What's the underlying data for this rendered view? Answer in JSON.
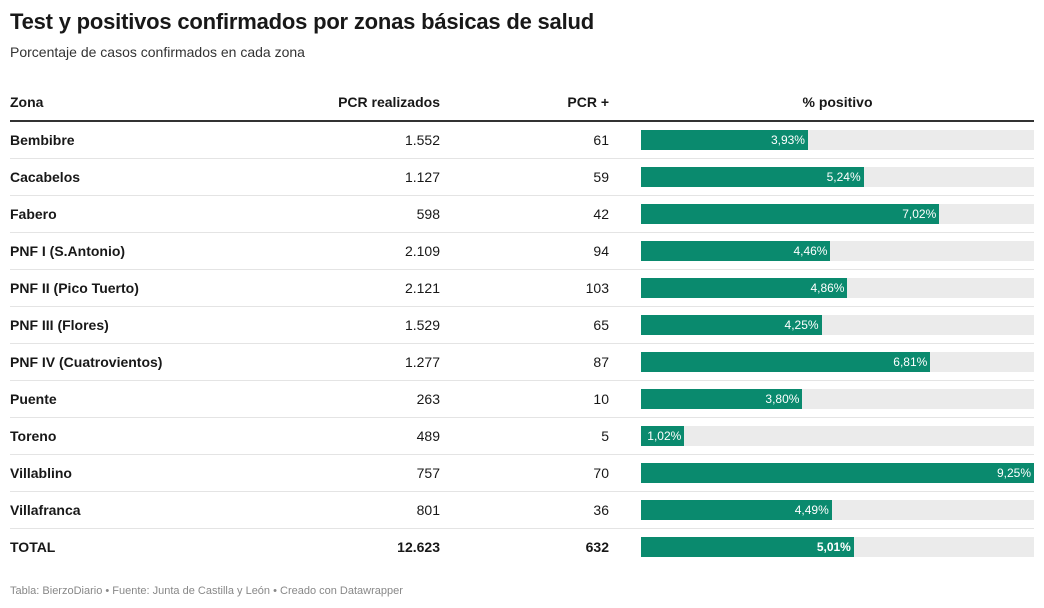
{
  "title": "Test y positivos confirmados por zonas básicas de salud",
  "subtitle": "Porcentaje de casos confirmados en cada zona",
  "footer": "Tabla: BierzoDiario • Fuente: Junta de Castilla y León • Creado con Datawrapper",
  "colors": {
    "bar_fill": "#0a8a6e",
    "bar_track": "#ebebeb"
  },
  "chart_data": {
    "type": "table",
    "columns": [
      "Zona",
      "PCR realizados",
      "PCR +",
      "% positivo"
    ],
    "bar_max": 9.25,
    "rows": [
      {
        "zona": "Bembibre",
        "pcr": "1.552",
        "pos": "61",
        "pct": 3.93,
        "pct_label": "3,93%"
      },
      {
        "zona": "Cacabelos",
        "pcr": "1.127",
        "pos": "59",
        "pct": 5.24,
        "pct_label": "5,24%"
      },
      {
        "zona": "Fabero",
        "pcr": "598",
        "pos": "42",
        "pct": 7.02,
        "pct_label": "7,02%"
      },
      {
        "zona": "PNF I (S.Antonio)",
        "pcr": "2.109",
        "pos": "94",
        "pct": 4.46,
        "pct_label": "4,46%"
      },
      {
        "zona": "PNF II (Pico Tuerto)",
        "pcr": "2.121",
        "pos": "103",
        "pct": 4.86,
        "pct_label": "4,86%"
      },
      {
        "zona": "PNF III (Flores)",
        "pcr": "1.529",
        "pos": "65",
        "pct": 4.25,
        "pct_label": "4,25%"
      },
      {
        "zona": "PNF IV (Cuatrovientos)",
        "pcr": "1.277",
        "pos": "87",
        "pct": 6.81,
        "pct_label": "6,81%"
      },
      {
        "zona": "Puente",
        "pcr": "263",
        "pos": "10",
        "pct": 3.8,
        "pct_label": "3,80%"
      },
      {
        "zona": "Toreno",
        "pcr": "489",
        "pos": "5",
        "pct": 1.02,
        "pct_label": "1,02%"
      },
      {
        "zona": "Villablino",
        "pcr": "757",
        "pos": "70",
        "pct": 9.25,
        "pct_label": "9,25%"
      },
      {
        "zona": "Villafranca",
        "pcr": "801",
        "pos": "36",
        "pct": 4.49,
        "pct_label": "4,49%"
      },
      {
        "zona": "TOTAL",
        "pcr": "12.623",
        "pos": "632",
        "pct": 5.01,
        "pct_label": "5,01%",
        "total": true
      }
    ]
  }
}
